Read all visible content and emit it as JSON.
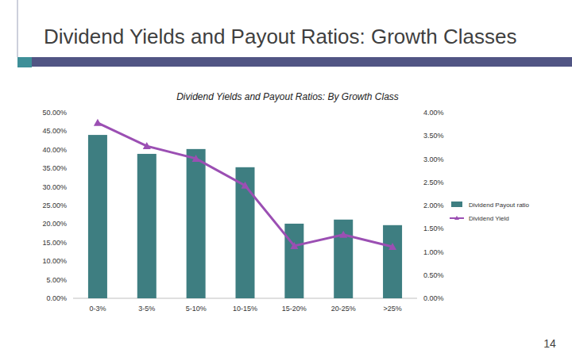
{
  "slide": {
    "title": "Dividend Yields and Payout Ratios: Growth Classes",
    "page_number": 14
  },
  "chart_data": {
    "type": "bar",
    "title": "Dividend Yields and Payout Ratios: By Growth Class",
    "categories": [
      "0-3%",
      "3-5%",
      "5-10%",
      "10-15%",
      "15-20%",
      "20-25%",
      ">25%"
    ],
    "series": [
      {
        "name": "Dividend Payout ratio",
        "type": "bar",
        "color": "#3e7e81",
        "values": [
          44.0,
          38.9,
          40.2,
          35.3,
          20.1,
          21.2,
          19.7
        ]
      },
      {
        "name": "Dividend Yield",
        "type": "line",
        "axis": "y2",
        "color": "#9b4fb3",
        "marker": "triangle",
        "values": [
          3.78,
          3.28,
          3.01,
          2.43,
          1.13,
          1.37,
          1.11
        ]
      }
    ],
    "ylim": [
      0,
      50
    ],
    "yticks": [
      {
        "value": 0,
        "label": "0.00%"
      },
      {
        "value": 5,
        "label": "5.00%"
      },
      {
        "value": 10,
        "label": "10.00%"
      },
      {
        "value": 15,
        "label": "15.00%"
      },
      {
        "value": 20,
        "label": "20.00%"
      },
      {
        "value": 25,
        "label": "25.00%"
      },
      {
        "value": 30,
        "label": "30.00%"
      },
      {
        "value": 35,
        "label": "35.00%"
      },
      {
        "value": 40,
        "label": "40.00%"
      },
      {
        "value": 45,
        "label": "45.00%"
      },
      {
        "value": 50,
        "label": "50.00%"
      }
    ],
    "y2lim": [
      0,
      4
    ],
    "y2ticks": [
      {
        "value": 0,
        "label": "0.00%"
      },
      {
        "value": 0.5,
        "label": "0.50%"
      },
      {
        "value": 1,
        "label": "1.00%"
      },
      {
        "value": 1.5,
        "label": "1.50%"
      },
      {
        "value": 2,
        "label": "2.00%"
      },
      {
        "value": 2.5,
        "label": "2.50%"
      },
      {
        "value": 3,
        "label": "3.00%"
      },
      {
        "value": 3.5,
        "label": "3.50%"
      },
      {
        "value": 4,
        "label": "4.00%"
      }
    ],
    "grid": false,
    "legend": "right"
  }
}
